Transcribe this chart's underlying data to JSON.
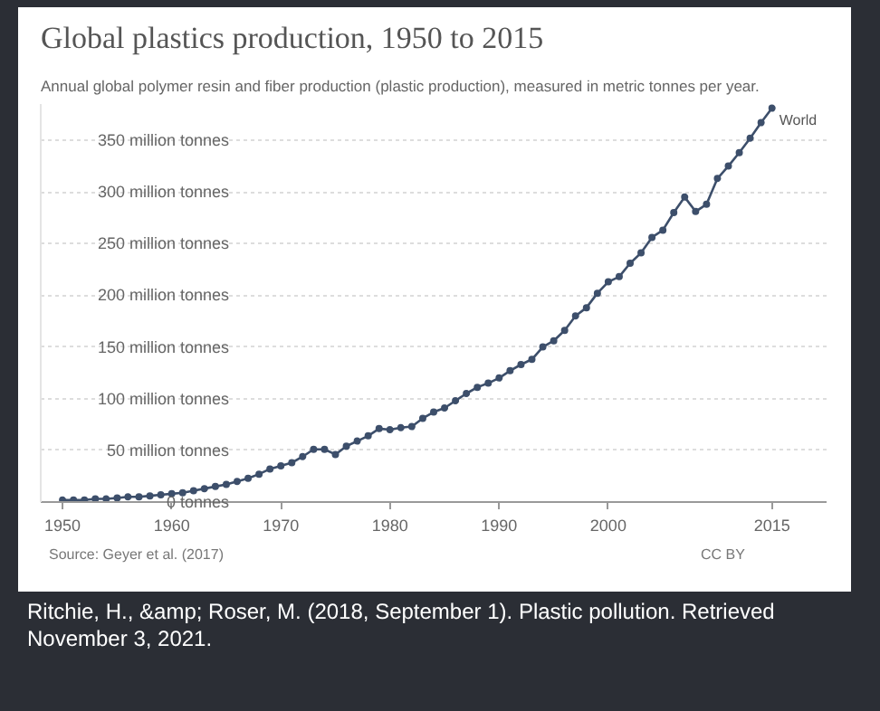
{
  "chart_data": {
    "type": "line",
    "title": "Global plastics production, 1950 to 2015",
    "subtitle": "Annual global polymer resin and fiber production (plastic production), measured in metric tonnes per year.",
    "x": [
      1950,
      1951,
      1952,
      1953,
      1954,
      1955,
      1956,
      1957,
      1958,
      1959,
      1960,
      1961,
      1962,
      1963,
      1964,
      1965,
      1966,
      1967,
      1968,
      1969,
      1970,
      1971,
      1972,
      1973,
      1974,
      1975,
      1976,
      1977,
      1978,
      1979,
      1980,
      1981,
      1982,
      1983,
      1984,
      1985,
      1986,
      1987,
      1988,
      1989,
      1990,
      1991,
      1992,
      1993,
      1994,
      1995,
      1996,
      1997,
      1998,
      1999,
      2000,
      2001,
      2002,
      2003,
      2004,
      2005,
      2006,
      2007,
      2008,
      2009,
      2010,
      2011,
      2012,
      2013,
      2014,
      2015
    ],
    "series": [
      {
        "name": "World",
        "color": "#3d4f6b",
        "values": [
          2,
          2,
          2,
          3,
          3,
          4,
          5,
          5,
          6,
          7,
          8,
          9,
          11,
          13,
          15,
          17,
          20,
          23,
          27,
          32,
          35,
          38,
          44,
          51,
          51,
          46,
          54,
          59,
          64,
          71,
          70,
          72,
          73,
          81,
          87,
          91,
          98,
          105,
          111,
          115,
          120,
          127,
          133,
          138,
          150,
          156,
          166,
          180,
          188,
          202,
          213,
          218,
          231,
          241,
          256,
          263,
          280,
          295,
          281,
          288,
          313,
          325,
          338,
          352,
          367,
          381
        ]
      }
    ],
    "xlim": [
      1948,
      2020
    ],
    "xticks": [
      1950,
      1960,
      1970,
      1980,
      1990,
      2000,
      2015
    ],
    "ylim": [
      0,
      385
    ],
    "yticks": [
      {
        "value": 0,
        "label": "0 tonnes"
      },
      {
        "value": 50,
        "label": "50 million tonnes"
      },
      {
        "value": 100,
        "label": "100 million tonnes"
      },
      {
        "value": 150,
        "label": "150 million tonnes"
      },
      {
        "value": 200,
        "label": "200 million tonnes"
      },
      {
        "value": 250,
        "label": "250 million tonnes"
      },
      {
        "value": 300,
        "label": "300 million tonnes"
      },
      {
        "value": 350,
        "label": "350 million tonnes"
      }
    ],
    "grid": "y",
    "marker": "circle",
    "line_style": "solid",
    "legend": false,
    "annotations": [
      "Source: Geyer et al. (2017)",
      "CC BY",
      "Ritchie, H., &amp; Roser, M. (2018, September 1). Plastic pollution. Retrieved November 3, 2021."
    ]
  }
}
